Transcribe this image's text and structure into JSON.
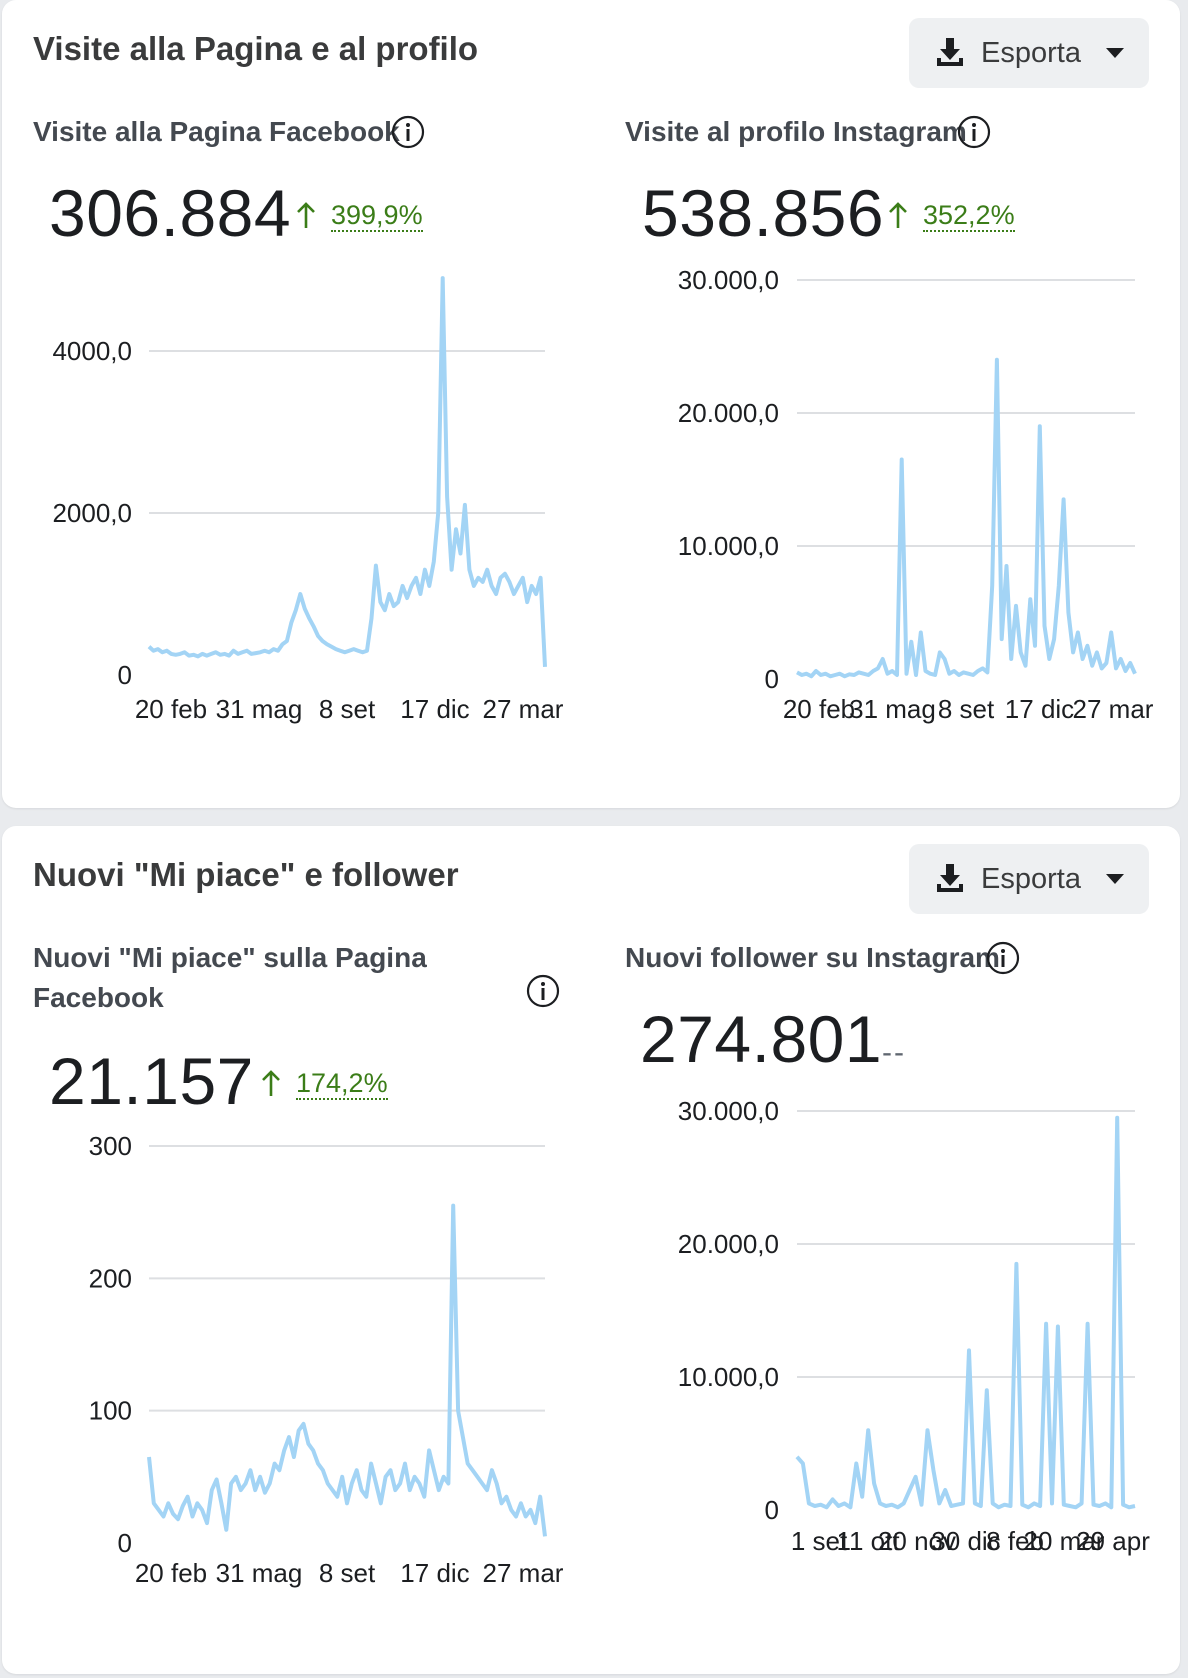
{
  "sections": [
    {
      "title": "Visite alla Pagina e al profilo",
      "export_label": "Esporta",
      "panels": [
        {
          "title": "Visite alla Pagina Facebook",
          "value": "306.884",
          "delta": "399,9%",
          "delta_direction": "up"
        },
        {
          "title": "Visite al profilo Instagram",
          "value": "538.856",
          "delta": "352,2%",
          "delta_direction": "up"
        }
      ]
    },
    {
      "title": "Nuovi \"Mi piace\" e follower",
      "export_label": "Esporta",
      "panels": [
        {
          "title": "Nuovi \"Mi piace\" sulla Pagina Facebook",
          "value": "21.157",
          "delta": "174,2%",
          "delta_direction": "up"
        },
        {
          "title": "Nuovi follower su Instagram",
          "value": "274.801",
          "delta": "--",
          "delta_direction": "none"
        }
      ]
    }
  ],
  "colors": {
    "series": "#a3d4f5",
    "gridline": "#dddfe2",
    "delta_up": "#3b7d18"
  },
  "icons": {
    "export": "download-icon",
    "dropdown": "caret-down-icon",
    "info": "info-icon",
    "trend": "arrow-up-icon"
  },
  "chart_data": [
    {
      "type": "line",
      "series": [
        {
          "values": [
            350,
            300,
            320,
            280,
            300,
            260,
            250,
            260,
            280,
            240,
            250,
            230,
            260,
            240,
            260,
            280,
            250,
            260,
            240,
            300,
            260,
            280,
            300,
            260,
            270,
            280,
            300,
            280,
            320,
            300,
            380,
            420,
            650,
            800,
            1000,
            820,
            700,
            600,
            480,
            420,
            380,
            350,
            320,
            300,
            280,
            300,
            320,
            300,
            280,
            300,
            700,
            1350,
            900,
            800,
            1000,
            850,
            900,
            1100,
            950,
            1100,
            1200,
            1000,
            1300,
            1100,
            1400,
            2000,
            4900,
            2200,
            1300,
            1800,
            1500,
            2100,
            1300,
            1100,
            1200,
            1150,
            1300,
            1100,
            1000,
            1200,
            1250,
            1150,
            1000,
            1100,
            1200,
            900,
            1100,
            1000,
            1200,
            100
          ]
        }
      ],
      "ylim": [
        0,
        5000
      ],
      "yticks": [
        "0",
        "2000,0",
        "4000,0"
      ],
      "ytick_values": [
        0,
        2000,
        4000
      ],
      "xticks": [
        "20 feb",
        "31 mag",
        "8 set",
        "17 dic",
        "27 mar"
      ],
      "grid": true
    },
    {
      "type": "line",
      "series": [
        {
          "values": [
            500,
            300,
            400,
            200,
            600,
            300,
            400,
            200,
            300,
            400,
            200,
            350,
            300,
            500,
            400,
            300,
            600,
            800,
            1500,
            400,
            600,
            300,
            16500,
            400,
            2800,
            300,
            3500,
            600,
            400,
            300,
            2000,
            1500,
            400,
            600,
            300,
            500,
            400,
            300,
            600,
            800,
            500,
            7000,
            24000,
            3000,
            8500,
            1500,
            5500,
            2000,
            1000,
            6000,
            2500,
            19000,
            4000,
            1500,
            3000,
            7000,
            13500,
            5000,
            2000,
            3500,
            1500,
            2500,
            1000,
            2000,
            800,
            1200,
            3500,
            800,
            1500,
            600,
            1200,
            400
          ]
        }
      ],
      "ylim": [
        0,
        30000
      ],
      "yticks": [
        "0",
        "10.000,0",
        "20.000,0",
        "30.000,0"
      ],
      "ytick_values": [
        0,
        10000,
        20000,
        30000
      ],
      "xticks": [
        "20 feb",
        "31 mag",
        "8 set",
        "17 dic",
        "27 mar"
      ],
      "grid": true
    },
    {
      "type": "line",
      "series": [
        {
          "values": [
            65,
            30,
            25,
            20,
            30,
            22,
            18,
            28,
            35,
            20,
            30,
            25,
            15,
            40,
            48,
            30,
            10,
            45,
            50,
            40,
            45,
            55,
            40,
            50,
            38,
            45,
            60,
            55,
            70,
            80,
            65,
            85,
            90,
            75,
            70,
            60,
            55,
            45,
            40,
            35,
            50,
            30,
            45,
            55,
            40,
            35,
            60,
            45,
            30,
            50,
            55,
            40,
            45,
            60,
            40,
            50,
            45,
            35,
            70,
            55,
            40,
            50,
            45,
            255,
            100,
            80,
            60,
            55,
            50,
            45,
            40,
            55,
            45,
            30,
            35,
            25,
            20,
            30,
            20,
            25,
            15,
            35,
            5
          ]
        }
      ],
      "ylim": [
        0,
        300
      ],
      "yticks": [
        "0",
        "100",
        "200",
        "300"
      ],
      "ytick_values": [
        0,
        100,
        200,
        300
      ],
      "xticks": [
        "20 feb",
        "31 mag",
        "8 set",
        "17 dic",
        "27 mar"
      ],
      "grid": true
    },
    {
      "type": "line",
      "series": [
        {
          "values": [
            4000,
            3500,
            500,
            300,
            400,
            200,
            800,
            300,
            500,
            200,
            3500,
            1000,
            6000,
            2000,
            500,
            300,
            400,
            200,
            500,
            1500,
            2500,
            400,
            6000,
            3000,
            500,
            1500,
            300,
            400,
            500,
            12000,
            500,
            300,
            9000,
            500,
            200,
            400,
            300,
            18500,
            400,
            200,
            500,
            300,
            14000,
            500,
            13800,
            400,
            300,
            200,
            500,
            14000,
            400,
            300,
            500,
            200,
            29500,
            400,
            200,
            300
          ]
        }
      ],
      "ylim": [
        0,
        30000
      ],
      "yticks": [
        "0",
        "10.000,0",
        "20.000,0",
        "30.000,0"
      ],
      "ytick_values": [
        0,
        10000,
        20000,
        30000
      ],
      "xticks": [
        "1 set",
        "11 ott",
        "20 nov",
        "30 dic",
        "8 feb",
        "20 mar",
        "29 apr"
      ],
      "grid": true
    }
  ]
}
